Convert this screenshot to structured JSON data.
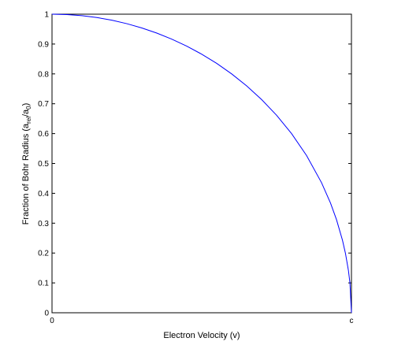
{
  "chart_data": {
    "type": "line",
    "title": "",
    "xlabel": "Electron Velocity (v)",
    "ylabel": {
      "main": "Fraction of Bohr Radius (a",
      "sub_rel": "rel",
      "mid": "/a",
      "sub_zero": "0",
      "end": ")"
    },
    "xlim": [
      0,
      1
    ],
    "ylim": [
      0,
      1
    ],
    "x_ticks": [
      {
        "value": 0,
        "label": "0"
      },
      {
        "value": 1,
        "label": "c"
      }
    ],
    "y_ticks": [
      {
        "value": 0,
        "label": "0"
      },
      {
        "value": 0.1,
        "label": "0.1"
      },
      {
        "value": 0.2,
        "label": "0.2"
      },
      {
        "value": 0.3,
        "label": "0.3"
      },
      {
        "value": 0.4,
        "label": "0.4"
      },
      {
        "value": 0.5,
        "label": "0.5"
      },
      {
        "value": 0.6,
        "label": "0.6"
      },
      {
        "value": 0.7,
        "label": "0.7"
      },
      {
        "value": 0.8,
        "label": "0.8"
      },
      {
        "value": 0.9,
        "label": "0.9"
      },
      {
        "value": 1,
        "label": "1"
      }
    ],
    "grid": false,
    "series": [
      {
        "color": "#0000ff",
        "x": [
          0,
          0.05,
          0.1,
          0.15,
          0.2,
          0.25,
          0.3,
          0.35,
          0.4,
          0.45,
          0.5,
          0.55,
          0.6,
          0.65,
          0.7,
          0.75,
          0.8,
          0.85,
          0.9,
          0.93,
          0.95,
          0.97,
          0.98,
          0.99,
          0.995,
          1
        ],
        "y": [
          1,
          0.9987,
          0.995,
          0.9887,
          0.9798,
          0.9682,
          0.9539,
          0.9367,
          0.9165,
          0.893,
          0.866,
          0.8352,
          0.8,
          0.7599,
          0.7141,
          0.6614,
          0.6,
          0.5268,
          0.4359,
          0.3676,
          0.3122,
          0.2431,
          0.199,
          0.1411,
          0.0999,
          0
        ]
      }
    ]
  }
}
